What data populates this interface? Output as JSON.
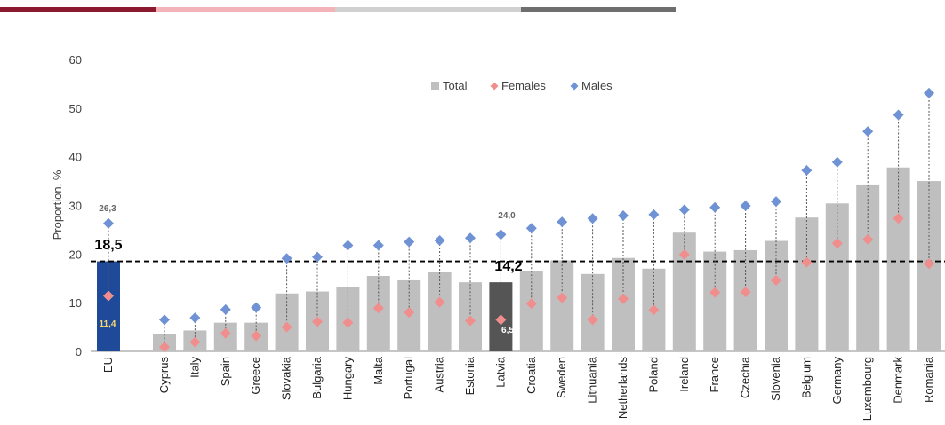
{
  "header_bar": {
    "colors": [
      "#8B1A2E",
      "#F4B3B8",
      "#D0D0D0",
      "#6E6E6E"
    ]
  },
  "chart_data": {
    "type": "bar",
    "ylabel": "Proportion, %",
    "ylim": [
      0,
      60
    ],
    "yticks": [
      0,
      10,
      20,
      30,
      40,
      50,
      60
    ],
    "legend": [
      "Total",
      "Females",
      "Males"
    ],
    "legend_placement": "top-center",
    "colors": {
      "total": "#BFBFBF",
      "females": "#F08E8E",
      "males": "#6F92D4",
      "eu_bar": "#1F4A9A",
      "latvia_bar": "#555555",
      "avg_line": "#000000",
      "eu_female_label": "#F5D76E",
      "latvia_female_label": "#FFFFFF"
    },
    "categories": [
      "EU",
      "Cyprus",
      "Italy",
      "Spain",
      "Greece",
      "Slovakia",
      "Bulgaria",
      "Hungary",
      "Malta",
      "Portugal",
      "Austria",
      "Estonia",
      "Latvia",
      "Croatia",
      "Sweden",
      "Lithuania",
      "Netherlands",
      "Poland",
      "Ireland",
      "France",
      "Czechia",
      "Slovenia",
      "Belgium",
      "Germany",
      "Luxembourg",
      "Denmark",
      "Romania"
    ],
    "series": [
      {
        "name": "Total",
        "values": [
          18.5,
          3.5,
          4.3,
          5.9,
          5.9,
          11.9,
          12.3,
          13.3,
          15.5,
          14.6,
          16.4,
          14.2,
          14.2,
          16.6,
          18.7,
          15.9,
          19.2,
          17.0,
          24.4,
          20.5,
          20.8,
          22.7,
          27.5,
          30.4,
          34.3,
          37.8,
          35.0
        ]
      },
      {
        "name": "Females",
        "values": [
          11.4,
          0.9,
          1.9,
          3.7,
          3.2,
          5.0,
          6.1,
          5.9,
          8.9,
          8.0,
          10.1,
          6.3,
          6.5,
          9.8,
          11.0,
          6.5,
          10.8,
          8.5,
          19.9,
          12.1,
          12.2,
          14.6,
          18.3,
          22.2,
          23.0,
          27.3,
          18.0
        ]
      },
      {
        "name": "Males",
        "values": [
          26.3,
          6.5,
          6.9,
          8.6,
          9.0,
          19.1,
          19.4,
          21.8,
          21.8,
          22.5,
          22.8,
          23.3,
          24.0,
          25.3,
          26.6,
          27.3,
          27.9,
          28.1,
          29.1,
          29.6,
          29.9,
          30.8,
          37.2,
          38.9,
          45.2,
          48.6,
          53.1
        ]
      }
    ],
    "eu_average_line": 18.5,
    "annotations": {
      "eu_total": "18,5",
      "eu_males": "26,3",
      "eu_females": "11,4",
      "latvia_total": "14,2",
      "latvia_males": "24,0",
      "latvia_females": "6,5"
    }
  }
}
